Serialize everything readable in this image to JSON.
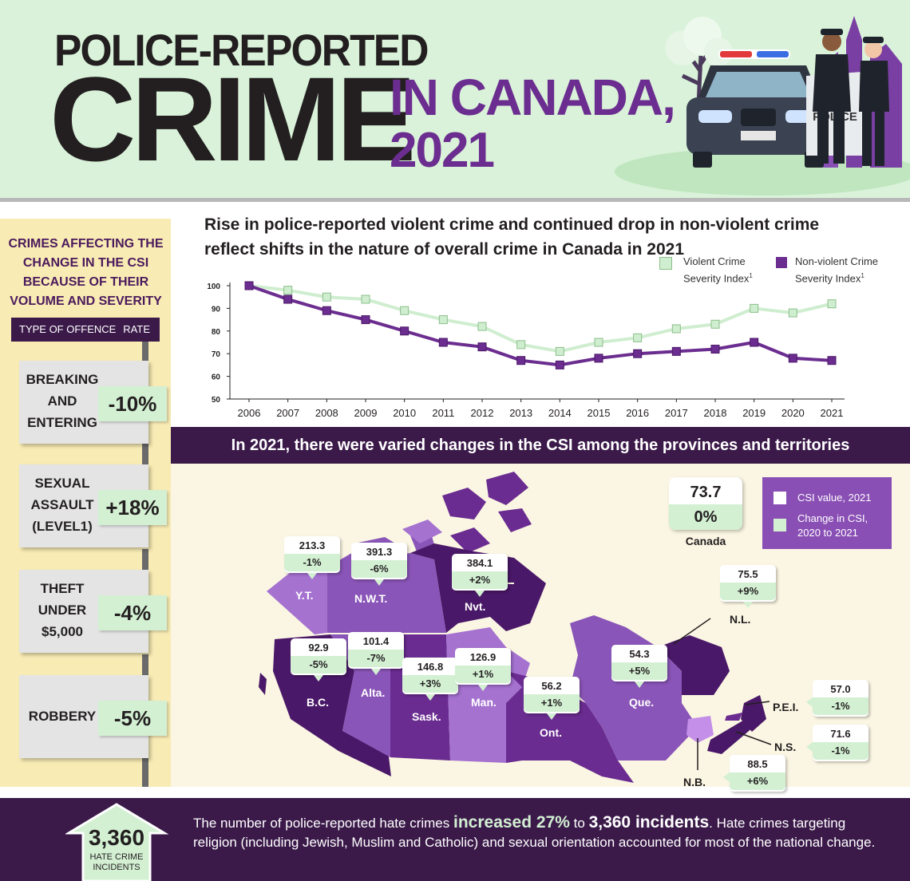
{
  "header": {
    "title_line1": "POLICE-REPORTED",
    "title_line2": "CRIME",
    "title_line3": "IN CANADA,",
    "title_line4": "2021",
    "police_sign": "POLICE"
  },
  "left_panel": {
    "title": "CRIMES AFFECTING THE CHANGE IN THE CSI BECAUSE OF THEIR VOLUME AND SEVERITY",
    "col_offence": "TYPE OF OFFENCE",
    "col_rate": "RATE",
    "offences": [
      {
        "name_lines": [
          "BREAKING",
          "AND",
          "ENTERING"
        ],
        "rate": "-10%"
      },
      {
        "name_lines": [
          "SEXUAL",
          "ASSAULT",
          "(LEVEL1)"
        ],
        "rate": "+18%"
      },
      {
        "name_lines": [
          "THEFT",
          "UNDER",
          "$5,000"
        ],
        "rate": "-4%"
      },
      {
        "name_lines": [
          "ROBBERY"
        ],
        "rate": "-5%"
      }
    ]
  },
  "chart_data": {
    "type": "line",
    "title": "Rise in police-reported violent crime and continued drop in non-violent crime reflect shifts in the nature of overall crime in Canada in 2021",
    "x": [
      2006,
      2007,
      2008,
      2009,
      2010,
      2011,
      2012,
      2013,
      2014,
      2015,
      2016,
      2017,
      2018,
      2019,
      2020,
      2021
    ],
    "ylim": [
      50,
      100
    ],
    "yticks": [
      50,
      60,
      70,
      80,
      90,
      100
    ],
    "series": [
      {
        "name": "Violent Crime Severity Index",
        "color": "#cfedcf",
        "values": [
          100,
          98,
          95,
          94,
          89,
          85,
          82,
          74,
          71,
          75,
          77,
          81,
          83,
          90,
          88,
          92
        ]
      },
      {
        "name": "Non-violent Crime Severity Index",
        "color": "#6b2d8f",
        "values": [
          100,
          94,
          89,
          85,
          80,
          75,
          73,
          67,
          65,
          68,
          70,
          71,
          72,
          75,
          68,
          67
        ]
      }
    ],
    "legend_position": "top-right",
    "grid": false
  },
  "legend": {
    "violent_line1": "Violent Crime",
    "violent_line2": "Severity Index",
    "nonviolent_line1": "Non-violent Crime",
    "nonviolent_line2": "Severity Index",
    "footnote_mark": "1"
  },
  "map": {
    "band_title": "In 2021, there were varied changes in the CSI among the provinces and territories",
    "canada": {
      "value": "73.7",
      "change": "0%",
      "label": "Canada"
    },
    "legend_value": "CSI value, 2021",
    "legend_change_line1": "Change in CSI,",
    "legend_change_line2": "2020 to 2021",
    "regions": [
      {
        "abbr": "Y.T.",
        "value": "213.3",
        "change": "-1%"
      },
      {
        "abbr": "N.W.T.",
        "value": "391.3",
        "change": "-6%"
      },
      {
        "abbr": "Nvt.",
        "value": "384.1",
        "change": "+2%"
      },
      {
        "abbr": "N.L.",
        "value": "75.5",
        "change": "+9%"
      },
      {
        "abbr": "B.C.",
        "value": "92.9",
        "change": "-5%"
      },
      {
        "abbr": "Alta.",
        "value": "101.4",
        "change": "-7%"
      },
      {
        "abbr": "Sask.",
        "value": "146.8",
        "change": "+3%"
      },
      {
        "abbr": "Man.",
        "value": "126.9",
        "change": "+1%"
      },
      {
        "abbr": "Ont.",
        "value": "56.2",
        "change": "+1%"
      },
      {
        "abbr": "Que.",
        "value": "54.3",
        "change": "+5%"
      },
      {
        "abbr": "P.E.I.",
        "value": "57.0",
        "change": "-1%"
      },
      {
        "abbr": "N.S.",
        "value": "71.6",
        "change": "-1%"
      },
      {
        "abbr": "N.B.",
        "value": "88.5",
        "change": "+6%"
      }
    ],
    "colors": {
      "dark": "#4a1868",
      "mid": "#6a2c90",
      "light": "#8a55b8",
      "lighter": "#a572d0",
      "accent": "#c48fe8"
    }
  },
  "bottom": {
    "number": "3,360",
    "label_line1": "HATE CRIME",
    "label_line2": "INCIDENTS",
    "text_a": "The number of police-reported hate crimes ",
    "text_b": "increased 27%",
    "text_c": " to ",
    "text_d": "3,360 incidents",
    "text_e": ". Hate crimes targeting religion (including Jewish, Muslim and Catholic) and sexual orientation accounted for most of the national change."
  }
}
